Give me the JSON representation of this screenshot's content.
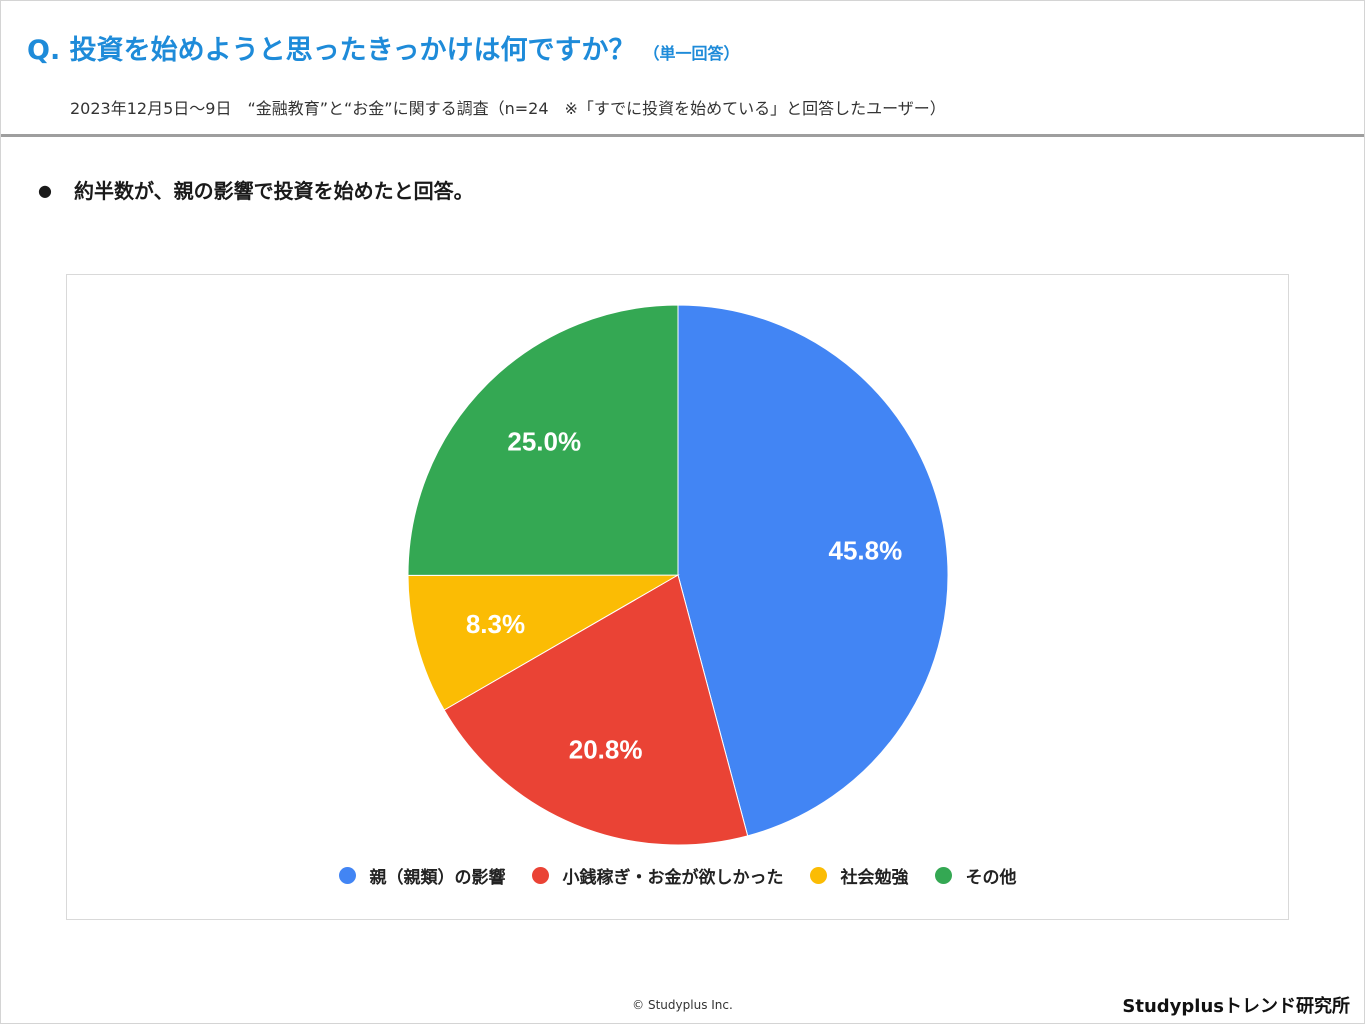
{
  "header": {
    "question": "Q. 投資を始めようと思ったきっかけは何ですか？",
    "answer_type": "（単一回答）",
    "survey_info": "2023年12月5日～9日　“金融教育”と“お金”に関する調査（n=24　※「すでに投資を始めている」と回答したユーザー）"
  },
  "finding": {
    "bullet": "●",
    "text": "約半数が、親の影響で投資を始めたと回答。"
  },
  "chart_data": {
    "type": "pie",
    "title": "",
    "legend_position": "bottom",
    "slices": [
      {
        "label": "親（親類）の影響",
        "value": 45.8,
        "display": "45.8%",
        "color": "#4285F4"
      },
      {
        "label": "小銭稼ぎ・お金が欲しかった",
        "value": 20.8,
        "display": "20.8%",
        "color": "#EA4335"
      },
      {
        "label": "社会勉強",
        "value": 8.3,
        "display": "8.3%",
        "color": "#FBBC04"
      },
      {
        "label": "その他",
        "value": 25.0,
        "display": "25.0%",
        "color": "#34A853"
      }
    ]
  },
  "footer": {
    "copyright": "© Studyplus Inc.",
    "brand": "Studyplusトレンド研究所"
  }
}
